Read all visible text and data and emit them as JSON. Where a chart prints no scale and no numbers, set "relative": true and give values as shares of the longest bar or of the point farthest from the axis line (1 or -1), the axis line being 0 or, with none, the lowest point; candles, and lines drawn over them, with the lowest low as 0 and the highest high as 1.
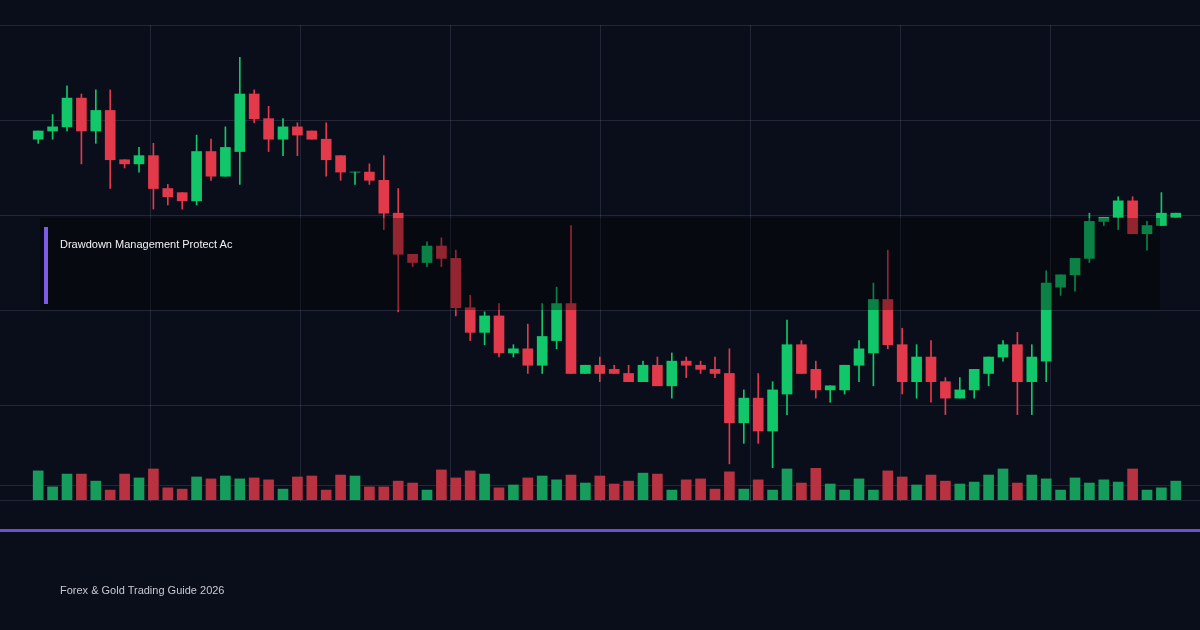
{
  "chart_data": [
    {
      "type": "candlestick",
      "relative": true,
      "grid": true,
      "legend": false,
      "categories": [
        null,
        null,
        null,
        null,
        null,
        null,
        null,
        null,
        null,
        null,
        null,
        null,
        null,
        null,
        null,
        null,
        null,
        null,
        null,
        null,
        null,
        null,
        null,
        null,
        null,
        null,
        null,
        null,
        null,
        null,
        null,
        null,
        null,
        null,
        null,
        null,
        null,
        null,
        null,
        null,
        null,
        null,
        null,
        null,
        null,
        null,
        null,
        null,
        null,
        null,
        null,
        null,
        null,
        null,
        null,
        null,
        null,
        null,
        null,
        null,
        null,
        null,
        null,
        null,
        null,
        null,
        null,
        null,
        null,
        null,
        null,
        null,
        null,
        null,
        null,
        null,
        null,
        null,
        null,
        null
      ],
      "ohlc": [
        [
          0.8,
          0.82,
          0.79,
          0.82
        ],
        [
          0.82,
          0.86,
          0.8,
          0.83
        ],
        [
          0.83,
          0.93,
          0.82,
          0.9
        ],
        [
          0.9,
          0.91,
          0.74,
          0.82
        ],
        [
          0.82,
          0.92,
          0.79,
          0.87
        ],
        [
          0.87,
          0.92,
          0.68,
          0.75
        ],
        [
          0.75,
          0.75,
          0.73,
          0.74
        ],
        [
          0.74,
          0.78,
          0.72,
          0.76
        ],
        [
          0.76,
          0.79,
          0.63,
          0.68
        ],
        [
          0.68,
          0.69,
          0.64,
          0.66
        ],
        [
          0.67,
          0.67,
          0.63,
          0.65
        ],
        [
          0.65,
          0.81,
          0.64,
          0.77
        ],
        [
          0.77,
          0.8,
          0.7,
          0.71
        ],
        [
          0.71,
          0.83,
          0.71,
          0.78
        ],
        [
          0.77,
          1.0,
          0.69,
          0.91
        ],
        [
          0.91,
          0.92,
          0.84,
          0.85
        ],
        [
          0.85,
          0.88,
          0.77,
          0.8
        ],
        [
          0.8,
          0.85,
          0.76,
          0.83
        ],
        [
          0.83,
          0.84,
          0.76,
          0.81
        ],
        [
          0.82,
          0.82,
          0.8,
          0.8
        ],
        [
          0.8,
          0.84,
          0.71,
          0.75
        ],
        [
          0.76,
          0.76,
          0.7,
          0.72
        ],
        [
          0.72,
          0.72,
          0.69,
          0.72
        ],
        [
          0.72,
          0.74,
          0.69,
          0.7
        ],
        [
          0.7,
          0.76,
          0.58,
          0.62
        ],
        [
          0.62,
          0.68,
          0.38,
          0.52
        ],
        [
          0.52,
          0.52,
          0.49,
          0.5
        ],
        [
          0.5,
          0.55,
          0.49,
          0.54
        ],
        [
          0.54,
          0.56,
          0.49,
          0.51
        ],
        [
          0.51,
          0.53,
          0.37,
          0.39
        ],
        [
          0.39,
          0.42,
          0.31,
          0.33
        ],
        [
          0.33,
          0.38,
          0.3,
          0.37
        ],
        [
          0.37,
          0.4,
          0.27,
          0.28
        ],
        [
          0.28,
          0.3,
          0.27,
          0.29
        ],
        [
          0.29,
          0.35,
          0.23,
          0.25
        ],
        [
          0.25,
          0.4,
          0.23,
          0.32
        ],
        [
          0.31,
          0.44,
          0.29,
          0.4
        ],
        [
          0.4,
          0.59,
          0.23,
          0.23
        ],
        [
          0.23,
          0.25,
          0.23,
          0.25
        ],
        [
          0.25,
          0.27,
          0.21,
          0.23
        ],
        [
          0.24,
          0.25,
          0.23,
          0.23
        ],
        [
          0.23,
          0.25,
          0.21,
          0.21
        ],
        [
          0.21,
          0.26,
          0.21,
          0.25
        ],
        [
          0.25,
          0.27,
          0.2,
          0.2
        ],
        [
          0.2,
          0.28,
          0.17,
          0.26
        ],
        [
          0.26,
          0.27,
          0.22,
          0.25
        ],
        [
          0.25,
          0.26,
          0.23,
          0.24
        ],
        [
          0.24,
          0.27,
          0.22,
          0.23
        ],
        [
          0.23,
          0.29,
          0.01,
          0.11
        ],
        [
          0.11,
          0.19,
          0.06,
          0.17
        ],
        [
          0.17,
          0.23,
          0.06,
          0.09
        ],
        [
          0.09,
          0.21,
          0.0,
          0.19
        ],
        [
          0.18,
          0.36,
          0.13,
          0.3
        ],
        [
          0.3,
          0.31,
          0.23,
          0.23
        ],
        [
          0.24,
          0.26,
          0.17,
          0.19
        ],
        [
          0.19,
          0.2,
          0.16,
          0.2
        ],
        [
          0.19,
          0.25,
          0.18,
          0.25
        ],
        [
          0.25,
          0.31,
          0.21,
          0.29
        ],
        [
          0.28,
          0.45,
          0.2,
          0.41
        ],
        [
          0.41,
          0.53,
          0.29,
          0.3
        ],
        [
          0.3,
          0.34,
          0.18,
          0.21
        ],
        [
          0.21,
          0.3,
          0.17,
          0.27
        ],
        [
          0.27,
          0.31,
          0.16,
          0.21
        ],
        [
          0.21,
          0.22,
          0.13,
          0.17
        ],
        [
          0.17,
          0.22,
          0.17,
          0.19
        ],
        [
          0.19,
          0.24,
          0.17,
          0.24
        ],
        [
          0.23,
          0.27,
          0.2,
          0.27
        ],
        [
          0.27,
          0.31,
          0.26,
          0.3
        ],
        [
          0.3,
          0.33,
          0.13,
          0.21
        ],
        [
          0.21,
          0.3,
          0.13,
          0.27
        ],
        [
          0.26,
          0.48,
          0.21,
          0.45
        ],
        [
          0.44,
          0.47,
          0.42,
          0.47
        ],
        [
          0.47,
          0.51,
          0.43,
          0.51
        ],
        [
          0.51,
          0.62,
          0.5,
          0.6
        ],
        [
          0.6,
          0.61,
          0.59,
          0.61
        ],
        [
          0.61,
          0.66,
          0.58,
          0.65
        ],
        [
          0.65,
          0.66,
          0.57,
          0.57
        ],
        [
          0.57,
          0.6,
          0.53,
          0.59
        ],
        [
          0.59,
          0.67,
          0.59,
          0.62
        ],
        [
          0.61,
          0.62,
          0.61,
          0.62
        ]
      ],
      "colors": [
        "#12c76a",
        "#12c76a",
        "#12c76a",
        "#e23a4b",
        "#12c76a",
        "#e23a4b",
        "#e23a4b",
        "#12c76a",
        "#e23a4b",
        "#e23a4b",
        "#e23a4b",
        "#12c76a",
        "#e23a4b",
        "#12c76a",
        "#12c76a",
        "#e23a4b",
        "#e23a4b",
        "#12c76a",
        "#e23a4b",
        "#e23a4b",
        "#e23a4b",
        "#e23a4b",
        "#12c76a",
        "#e23a4b",
        "#e23a4b",
        "#e23a4b",
        "#e23a4b",
        "#12c76a",
        "#e23a4b",
        "#e23a4b",
        "#e23a4b",
        "#12c76a",
        "#e23a4b",
        "#12c76a",
        "#e23a4b",
        "#12c76a",
        "#12c76a",
        "#e23a4b",
        "#12c76a",
        "#e23a4b",
        "#e23a4b",
        "#e23a4b",
        "#12c76a",
        "#e23a4b",
        "#12c76a",
        "#e23a4b",
        "#e23a4b",
        "#e23a4b",
        "#e23a4b",
        "#12c76a",
        "#e23a4b",
        "#12c76a",
        "#12c76a",
        "#e23a4b",
        "#e23a4b",
        "#12c76a",
        "#12c76a",
        "#12c76a",
        "#12c76a",
        "#e23a4b",
        "#e23a4b",
        "#12c76a",
        "#e23a4b",
        "#e23a4b",
        "#12c76a",
        "#12c76a",
        "#12c76a",
        "#12c76a",
        "#e23a4b",
        "#12c76a",
        "#12c76a",
        "#12c76a",
        "#12c76a",
        "#12c76a",
        "#12c76a",
        "#12c76a",
        "#e23a4b",
        "#12c76a",
        "#12c76a",
        "#12c76a"
      ],
      "annotations": [
        "Drawdown Management Protect Ac"
      ]
    },
    {
      "type": "bar",
      "relative": true,
      "grid": true,
      "legend": false,
      "categories": [
        null,
        null,
        null,
        null,
        null,
        null,
        null,
        null,
        null,
        null,
        null,
        null,
        null,
        null,
        null,
        null,
        null,
        null,
        null,
        null,
        null,
        null,
        null,
        null,
        null,
        null,
        null,
        null,
        null,
        null,
        null,
        null,
        null,
        null,
        null,
        null,
        null,
        null,
        null,
        null,
        null,
        null,
        null,
        null,
        null,
        null,
        null,
        null,
        null,
        null,
        null,
        null,
        null,
        null,
        null,
        null,
        null,
        null,
        null,
        null,
        null,
        null,
        null,
        null,
        null,
        null,
        null,
        null,
        null,
        null,
        null,
        null,
        null,
        null,
        null,
        null,
        null,
        null,
        null,
        null
      ],
      "values": [
        0.91,
        0.41,
        0.81,
        0.81,
        0.59,
        0.31,
        0.81,
        0.69,
        0.97,
        0.38,
        0.34,
        0.72,
        0.66,
        0.75,
        0.66,
        0.69,
        0.63,
        0.34,
        0.72,
        0.75,
        0.31,
        0.78,
        0.75,
        0.41,
        0.41,
        0.59,
        0.53,
        0.31,
        0.94,
        0.69,
        0.91,
        0.81,
        0.38,
        0.47,
        0.69,
        0.75,
        0.63,
        0.78,
        0.53,
        0.75,
        0.5,
        0.59,
        0.84,
        0.81,
        0.31,
        0.63,
        0.66,
        0.34,
        0.88,
        0.34,
        0.63,
        0.31,
        0.97,
        0.53,
        1,
        0.5,
        0.31,
        0.66,
        0.31,
        0.91,
        0.72,
        0.47,
        0.78,
        0.59,
        0.5,
        0.56,
        0.78,
        0.97,
        0.53,
        0.78,
        0.66,
        0.31,
        0.69,
        0.53,
        0.63,
        0.56,
        0.97,
        0.31,
        0.38,
        0.59
      ],
      "colors": [
        "#169c5b",
        "#169c5b",
        "#169c5b",
        "#b83241",
        "#169c5b",
        "#b83241",
        "#b83241",
        "#169c5b",
        "#b83241",
        "#b83241",
        "#b83241",
        "#169c5b",
        "#b83241",
        "#169c5b",
        "#169c5b",
        "#b83241",
        "#b83241",
        "#169c5b",
        "#b83241",
        "#b83241",
        "#b83241",
        "#b83241",
        "#169c5b",
        "#b83241",
        "#b83241",
        "#b83241",
        "#b83241",
        "#169c5b",
        "#b83241",
        "#b83241",
        "#b83241",
        "#169c5b",
        "#b83241",
        "#169c5b",
        "#b83241",
        "#169c5b",
        "#169c5b",
        "#b83241",
        "#169c5b",
        "#b83241",
        "#b83241",
        "#b83241",
        "#169c5b",
        "#b83241",
        "#169c5b",
        "#b83241",
        "#b83241",
        "#b83241",
        "#b83241",
        "#169c5b",
        "#b83241",
        "#169c5b",
        "#169c5b",
        "#b83241",
        "#b83241",
        "#169c5b",
        "#169c5b",
        "#169c5b",
        "#169c5b",
        "#b83241",
        "#b83241",
        "#169c5b",
        "#b83241",
        "#b83241",
        "#169c5b",
        "#169c5b",
        "#169c5b",
        "#169c5b",
        "#b83241",
        "#169c5b",
        "#169c5b",
        "#169c5b",
        "#169c5b",
        "#169c5b",
        "#169c5b",
        "#169c5b",
        "#b83241",
        "#169c5b",
        "#169c5b",
        "#169c5b"
      ],
      "annotations": [
        "Forex & Gold Trading Guide 2026"
      ]
    }
  ]
}
